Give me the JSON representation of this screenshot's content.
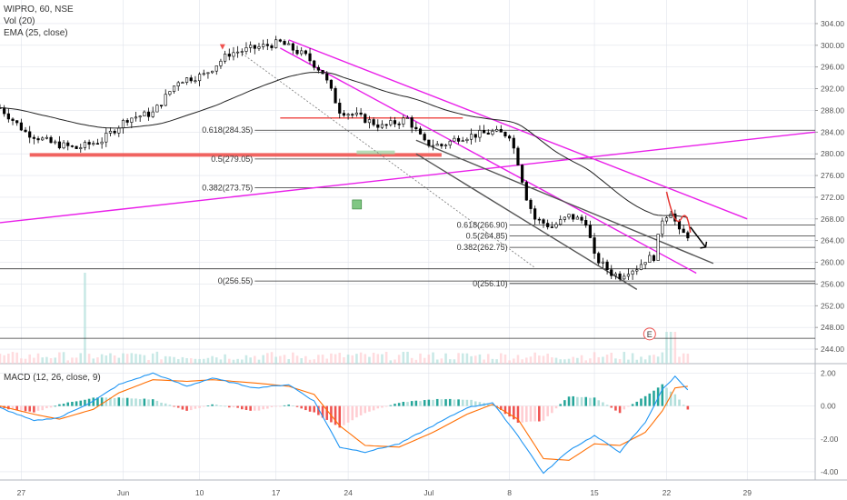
{
  "legend": {
    "title": "WIPRO, 60, NSE",
    "vol": "Vol (20)",
    "ema": "EMA (25, close)",
    "macd": "MACD (12, 26, close, 9)"
  },
  "colors": {
    "up": "#26a69a",
    "down": "#ef5350",
    "magenta": "#e91ee9",
    "red_zone": "#ef5350",
    "ema": "#222222",
    "macd_line": "#2196f3",
    "signal_line": "#ff6d00",
    "hist_up_strong": "#26a69a",
    "hist_up_weak": "#b2dfdb",
    "hist_down_strong": "#ef5350",
    "hist_down_weak": "#ffcdd2",
    "grid": "#e0e3eb",
    "candle": "#000000"
  },
  "price_axis": {
    "ticks": [
      "304.00",
      "300.00",
      "296.00",
      "292.00",
      "288.00",
      "284.00",
      "280.00",
      "276.00",
      "272.00",
      "268.00",
      "264.00",
      "260.00",
      "256.00",
      "252.00",
      "248.00",
      "244.00"
    ]
  },
  "macd_axis": {
    "ticks": [
      "2.00",
      "0.00",
      "-2.00",
      "-4.00"
    ]
  },
  "time_axis": {
    "labels": [
      "27",
      "Jun",
      "10",
      "17",
      "24",
      "Jul",
      "8",
      "15",
      "22",
      "29"
    ]
  },
  "fib_labels": {
    "left": [
      "0.618(284.35)",
      "0.5(279.05)",
      "0.382(273.75)",
      "0(256.55)"
    ],
    "right": [
      "0.618(266.90)",
      "0.5(264.85)",
      "0.382(262.75)",
      "0(256.10)"
    ]
  },
  "earnings_marker": "E",
  "chart_data": {
    "type": "candlestick",
    "symbol": "WIPRO",
    "interval": "60",
    "exchange": "NSE",
    "x": [
      "27",
      "Jun",
      "10",
      "17",
      "24",
      "Jul",
      "8",
      "15",
      "22",
      "29"
    ],
    "ylim": [
      243,
      305
    ],
    "macd_ylim": [
      -4.5,
      2.3
    ],
    "price_path": [
      {
        "t": 0,
        "close": 288.5
      },
      {
        "t": 3,
        "close": 284.0
      },
      {
        "t": 6,
        "close": 282.0
      },
      {
        "t": 9,
        "close": 281.0
      },
      {
        "t": 12,
        "close": 282.5
      },
      {
        "t": 15,
        "close": 286.5
      },
      {
        "t": 18,
        "close": 287.5
      },
      {
        "t": 21,
        "close": 293.5
      },
      {
        "t": 24,
        "close": 294.5
      },
      {
        "t": 27,
        "close": 298.5
      },
      {
        "t": 30,
        "close": 299.5
      },
      {
        "t": 33,
        "close": 300.5
      },
      {
        "t": 36,
        "close": 298.0
      },
      {
        "t": 38,
        "close": 295.0
      },
      {
        "t": 40,
        "close": 288.0
      },
      {
        "t": 42,
        "close": 287.0
      },
      {
        "t": 45,
        "close": 285.0
      },
      {
        "t": 48,
        "close": 286.5
      },
      {
        "t": 50,
        "close": 282.0
      },
      {
        "t": 52,
        "close": 281.5
      },
      {
        "t": 54,
        "close": 283.0
      },
      {
        "t": 56,
        "close": 283.5
      },
      {
        "t": 58,
        "close": 284.0
      },
      {
        "t": 60,
        "close": 283.5
      },
      {
        "t": 61,
        "close": 278.5
      },
      {
        "t": 62,
        "close": 272.0
      },
      {
        "t": 63,
        "close": 268.0
      },
      {
        "t": 65,
        "close": 266.5
      },
      {
        "t": 67,
        "close": 268.5
      },
      {
        "t": 69,
        "close": 267.5
      },
      {
        "t": 70,
        "close": 261.0
      },
      {
        "t": 72,
        "close": 258.0
      },
      {
        "t": 73,
        "close": 257.5
      },
      {
        "t": 74,
        "close": 258.5
      },
      {
        "t": 75,
        "close": 259.0
      },
      {
        "t": 76,
        "close": 260.5
      },
      {
        "t": 77,
        "close": 261.0
      },
      {
        "t": 78,
        "close": 268.0
      },
      {
        "t": 79,
        "close": 269.5
      },
      {
        "t": 80,
        "close": 265.5
      },
      {
        "t": 81,
        "close": 265.0
      }
    ],
    "fibonacci": {
      "left_levels": [
        {
          "ratio": 0.618,
          "price": 284.35
        },
        {
          "ratio": 0.5,
          "price": 279.05
        },
        {
          "ratio": 0.382,
          "price": 273.75
        },
        {
          "ratio": 0,
          "price": 256.55
        }
      ],
      "right_levels": [
        {
          "ratio": 0.618,
          "price": 266.9
        },
        {
          "ratio": 0.5,
          "price": 264.85
        },
        {
          "ratio": 0.382,
          "price": 262.75
        },
        {
          "ratio": 0,
          "price": 256.1
        }
      ]
    },
    "horizontal_lines": [
      258.8,
      246.0
    ],
    "support_zones": [
      {
        "price": 279.8,
        "color": "#ef5350"
      },
      {
        "price": 286.6,
        "color": "#ef5350"
      }
    ],
    "trendlines": [
      {
        "color": "#e91ee9",
        "from": [
          0,
          267.3
        ],
        "to": [
          96,
          284.0
        ]
      },
      {
        "color": "#e91ee9",
        "from": [
          34,
          301.0
        ],
        "to": [
          88,
          268.0
        ]
      },
      {
        "color": "#e91ee9",
        "from": [
          33,
          299.5
        ],
        "to": [
          82,
          258.0
        ]
      },
      {
        "color": "#555555",
        "from": [
          49,
          282.5
        ],
        "to": [
          84,
          259.8
        ]
      },
      {
        "color": "#555555",
        "from": [
          49,
          280.0
        ],
        "to": [
          75,
          255.0
        ]
      }
    ],
    "volume": {
      "spike_at": 10,
      "spike": 1.0,
      "base": 0.12
    },
    "macd": [
      {
        "t": 0,
        "macd": -0.1,
        "signal": 0.0
      },
      {
        "t": 4,
        "macd": -0.9,
        "signal": -0.5
      },
      {
        "t": 7,
        "macd": -0.7,
        "signal": -0.8
      },
      {
        "t": 11,
        "macd": 0.3,
        "signal": -0.2
      },
      {
        "t": 14,
        "macd": 1.3,
        "signal": 0.8
      },
      {
        "t": 18,
        "macd": 2.0,
        "signal": 1.6
      },
      {
        "t": 22,
        "macd": 1.2,
        "signal": 1.5
      },
      {
        "t": 25,
        "macd": 1.7,
        "signal": 1.6
      },
      {
        "t": 30,
        "macd": 1.1,
        "signal": 1.4
      },
      {
        "t": 34,
        "macd": 1.3,
        "signal": 1.2
      },
      {
        "t": 37,
        "macd": 0.3,
        "signal": 0.7
      },
      {
        "t": 40,
        "macd": -2.5,
        "signal": -1.2
      },
      {
        "t": 43,
        "macd": -2.8,
        "signal": -2.4
      },
      {
        "t": 47,
        "macd": -2.3,
        "signal": -2.5
      },
      {
        "t": 51,
        "macd": -1.2,
        "signal": -1.6
      },
      {
        "t": 55,
        "macd": -0.1,
        "signal": -0.5
      },
      {
        "t": 58,
        "macd": 0.2,
        "signal": 0.1
      },
      {
        "t": 61,
        "macd": -1.8,
        "signal": -0.8
      },
      {
        "t": 64,
        "macd": -4.1,
        "signal": -3.2
      },
      {
        "t": 67,
        "macd": -2.7,
        "signal": -3.3
      },
      {
        "t": 70,
        "macd": -1.8,
        "signal": -2.3
      },
      {
        "t": 73,
        "macd": -2.8,
        "signal": -2.4
      },
      {
        "t": 76,
        "macd": -1.0,
        "signal": -1.6
      },
      {
        "t": 78,
        "macd": 1.0,
        "signal": -0.3
      },
      {
        "t": 79.5,
        "macd": 1.8,
        "signal": 1.1
      },
      {
        "t": 81,
        "macd": 1.0,
        "signal": 1.2
      }
    ]
  }
}
